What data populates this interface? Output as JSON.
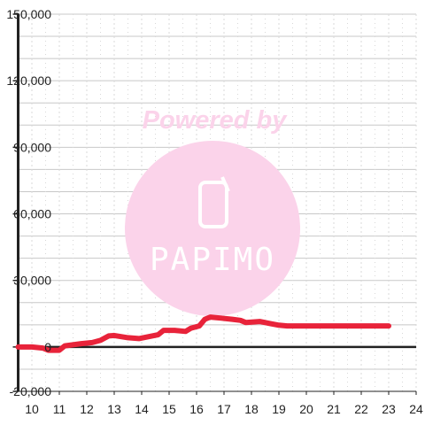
{
  "chart_data": {
    "type": "line",
    "title": "",
    "xlabel": "",
    "ylabel": "",
    "xlim": [
      9.5,
      24
    ],
    "ylim": [
      -20000,
      150000
    ],
    "x_ticks": [
      10,
      11,
      12,
      13,
      14,
      15,
      16,
      17,
      18,
      19,
      20,
      21,
      22,
      23,
      24
    ],
    "y_ticks": [
      -20000,
      0,
      30000,
      60000,
      90000,
      120000,
      150000
    ],
    "x_tick_labels": [
      "10",
      "11",
      "12",
      "13",
      "14",
      "15",
      "16",
      "17",
      "18",
      "19",
      "20",
      "21",
      "22",
      "23",
      "24"
    ],
    "y_tick_labels": [
      "-20,000",
      "0",
      "30,000",
      "60,000",
      "90,000",
      "120,000",
      "150,000"
    ],
    "grid": true,
    "legend": "none",
    "series": [
      {
        "color": "#e8233a",
        "x": [
          9.5,
          10.0,
          10.4,
          10.6,
          11.0,
          11.2,
          11.5,
          11.8,
          12.2,
          12.5,
          12.8,
          13.0,
          13.2,
          13.5,
          13.9,
          14.2,
          14.6,
          14.8,
          15.2,
          15.6,
          15.8,
          16.1,
          16.3,
          16.5,
          16.9,
          17.3,
          17.6,
          17.8,
          18.3,
          18.7,
          19.0,
          19.3,
          20.0,
          21.0,
          22.0,
          23.0
        ],
        "y": [
          0,
          0,
          -500,
          -1500,
          -1500,
          500,
          1000,
          1500,
          2000,
          3000,
          5000,
          5200,
          4800,
          4200,
          3800,
          4500,
          5500,
          7500,
          7500,
          7000,
          8500,
          9500,
          12500,
          13500,
          13000,
          12500,
          12000,
          11000,
          11500,
          10500,
          9800,
          9500,
          9500,
          9500,
          9500,
          9500
        ]
      }
    ]
  },
  "watermark": {
    "powered_by": "Powered by",
    "logo_text": "PAPIMO",
    "color": "#f5a3cf"
  },
  "colors": {
    "axis": "#222222",
    "grid_major": "#c8c8c8",
    "grid_minor": "#d8d8d8",
    "line": "#e8233a",
    "watermark": "#fbd3ea"
  }
}
